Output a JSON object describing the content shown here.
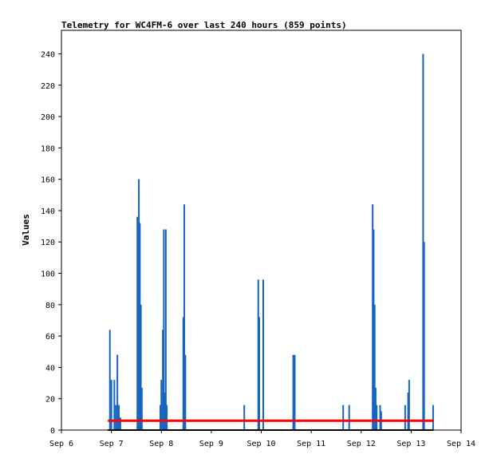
{
  "chart_data": {
    "type": "line",
    "title": "Telemetry for WC4FM-6 over last 240 hours (859 points)",
    "xlabel": "",
    "ylabel": "Values",
    "xlim": [
      "Sep 6",
      "Sep 14"
    ],
    "ylim": [
      0,
      255
    ],
    "x_ticks": [
      "Sep 6",
      "Sep 7",
      "Sep 8",
      "Sep 9",
      "Sep 10",
      "Sep 11",
      "Sep 12",
      "Sep 13",
      "Sep 14"
    ],
    "y_ticks": [
      0,
      20,
      40,
      60,
      80,
      100,
      120,
      140,
      160,
      180,
      200,
      220,
      240
    ],
    "grid": false,
    "legend": "none",
    "series": [
      {
        "color": "#1565c0",
        "style": "spikes",
        "points": [
          [
            6.97,
            64
          ],
          [
            7.0,
            32
          ],
          [
            7.06,
            32
          ],
          [
            7.09,
            16
          ],
          [
            7.12,
            48
          ],
          [
            7.15,
            16
          ],
          [
            7.18,
            8
          ],
          [
            7.52,
            136
          ],
          [
            7.55,
            160
          ],
          [
            7.57,
            132
          ],
          [
            7.59,
            80
          ],
          [
            7.61,
            27
          ],
          [
            7.98,
            16
          ],
          [
            8.0,
            32
          ],
          [
            8.03,
            64
          ],
          [
            8.05,
            128
          ],
          [
            8.07,
            24
          ],
          [
            8.09,
            128
          ],
          [
            8.11,
            16
          ],
          [
            8.44,
            72
          ],
          [
            8.46,
            144
          ],
          [
            8.48,
            48
          ],
          [
            9.66,
            16
          ],
          [
            9.94,
            96
          ],
          [
            9.96,
            72
          ],
          [
            10.04,
            96
          ],
          [
            10.64,
            48
          ],
          [
            10.67,
            48
          ],
          [
            11.64,
            16
          ],
          [
            11.76,
            16
          ],
          [
            12.23,
            144
          ],
          [
            12.25,
            128
          ],
          [
            12.27,
            80
          ],
          [
            12.29,
            27
          ],
          [
            12.31,
            16
          ],
          [
            12.38,
            16
          ],
          [
            12.4,
            12
          ],
          [
            12.88,
            16
          ],
          [
            12.94,
            24
          ],
          [
            12.96,
            32
          ],
          [
            13.24,
            240
          ],
          [
            13.26,
            120
          ],
          [
            13.44,
            16
          ]
        ]
      },
      {
        "color": "#ff0000",
        "style": "line",
        "y": 6,
        "x_range": [
          6.93,
          13.45
        ]
      },
      {
        "color": "#000000",
        "style": "line",
        "y": 0,
        "x_range": [
          6.93,
          13.45
        ]
      }
    ]
  }
}
